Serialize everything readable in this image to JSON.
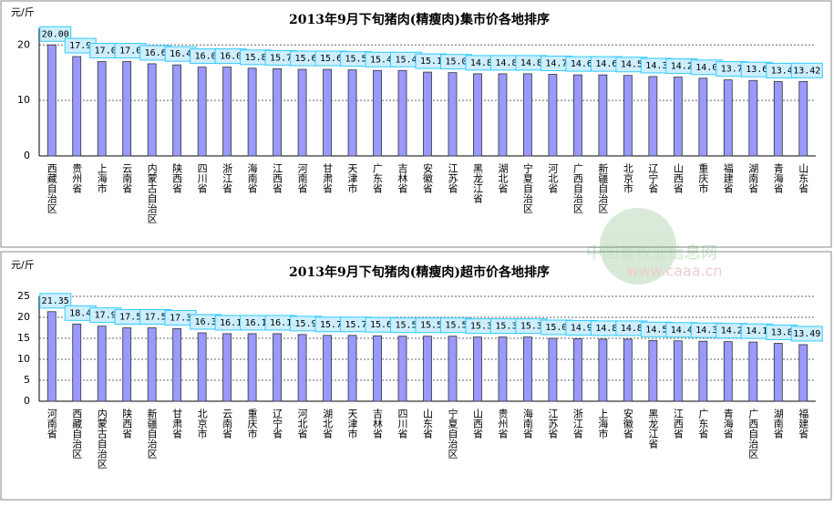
{
  "chart_data": [
    {
      "type": "bar",
      "title": "2013年9月下旬猪肉(精瘦肉)集市价各地排序",
      "y_label": "元/斤",
      "color": "#9999ff",
      "categories": [
        "西藏自治区",
        "贵州省",
        "上海市",
        "云南省",
        "内蒙古自治区",
        "陕西省",
        "四川省",
        "浙江省",
        "海南省",
        "江西省",
        "河南省",
        "甘肃省",
        "天津市",
        "广东省",
        "吉林省",
        "安徽省",
        "江苏省",
        "黑龙江省",
        "湖北省",
        "宁夏自治区",
        "河北省",
        "广西自治区",
        "新疆自治区",
        "北京市",
        "辽宁省",
        "山西省",
        "重庆市",
        "福建省",
        "湖南省",
        "青海省",
        "山东省"
      ],
      "values": [
        20.0,
        17.9,
        17.0,
        17.0,
        16.6,
        16.4,
        16.0,
        16.0,
        15.8,
        15.7,
        15.6,
        15.6,
        15.5,
        15.4,
        15.4,
        15.1,
        15.0,
        14.8,
        14.8,
        14.8,
        14.7,
        14.6,
        14.6,
        14.5,
        14.3,
        14.2,
        14.0,
        13.7,
        13.6,
        13.4,
        13.42
      ],
      "value_labels": [
        "20.00",
        "17.9",
        "17.0",
        "17.0",
        "16.6",
        "16.4",
        "16.0",
        "16.0",
        "15.8",
        "15.7",
        "15.6",
        "15.6",
        "15.5",
        "15.4",
        "15.4",
        "15.1",
        "15.0",
        "14.8",
        "14.8",
        "14.8",
        "14.7",
        "14.6",
        "14.6",
        "14.5",
        "14.3",
        "14.2",
        "14.0",
        "13.7",
        "13.6",
        "13.4",
        "13.42"
      ],
      "ylim": [
        0,
        23
      ],
      "yticks": [
        0,
        10,
        20
      ],
      "grid": true
    },
    {
      "type": "bar",
      "title": "2013年9月下旬猪肉(精瘦肉)超市价各地排序",
      "y_label": "元/斤",
      "color": "#9999ff",
      "categories": [
        "河南省",
        "西藏自治区",
        "内蒙古自治区",
        "陕西省",
        "新疆自治区",
        "甘肃省",
        "北京市",
        "云南省",
        "重庆市",
        "辽宁省",
        "河北省",
        "湖北省",
        "天津市",
        "吉林省",
        "四川省",
        "山东省",
        "宁夏自治区",
        "山西省",
        "贵州省",
        "海南省",
        "江苏省",
        "浙江省",
        "上海市",
        "安徽省",
        "黑龙江省",
        "江西省",
        "广东省",
        "青海省",
        "广西自治区",
        "湖南省",
        "福建省"
      ],
      "values": [
        21.35,
        18.4,
        17.9,
        17.5,
        17.5,
        17.3,
        16.3,
        16.1,
        16.1,
        16.1,
        15.9,
        15.7,
        15.7,
        15.6,
        15.5,
        15.5,
        15.5,
        15.3,
        15.3,
        15.3,
        15.0,
        14.9,
        14.8,
        14.8,
        14.5,
        14.4,
        14.3,
        14.2,
        14.1,
        13.8,
        13.49
      ],
      "value_labels": [
        "21.35",
        "18.4",
        "17.9",
        "17.5",
        "17.5",
        "17.3",
        "16.3",
        "16.1",
        "16.1",
        "16.1",
        "15.9",
        "15.7",
        "15.7",
        "15.6",
        "15.5",
        "15.5",
        "15.5",
        "15.3",
        "15.3",
        "15.3",
        "15.0",
        "14.9",
        "14.8",
        "14.8",
        "14.5",
        "14.4",
        "14.3",
        "14.2",
        "14.1",
        "13.8",
        "13.49"
      ],
      "ylim": [
        0,
        25
      ],
      "yticks": [
        0,
        5,
        10,
        15,
        20,
        25
      ],
      "grid": true
    }
  ],
  "watermark": {
    "name": "中国畜牧业信息网",
    "url": "www.caaa.cn"
  }
}
